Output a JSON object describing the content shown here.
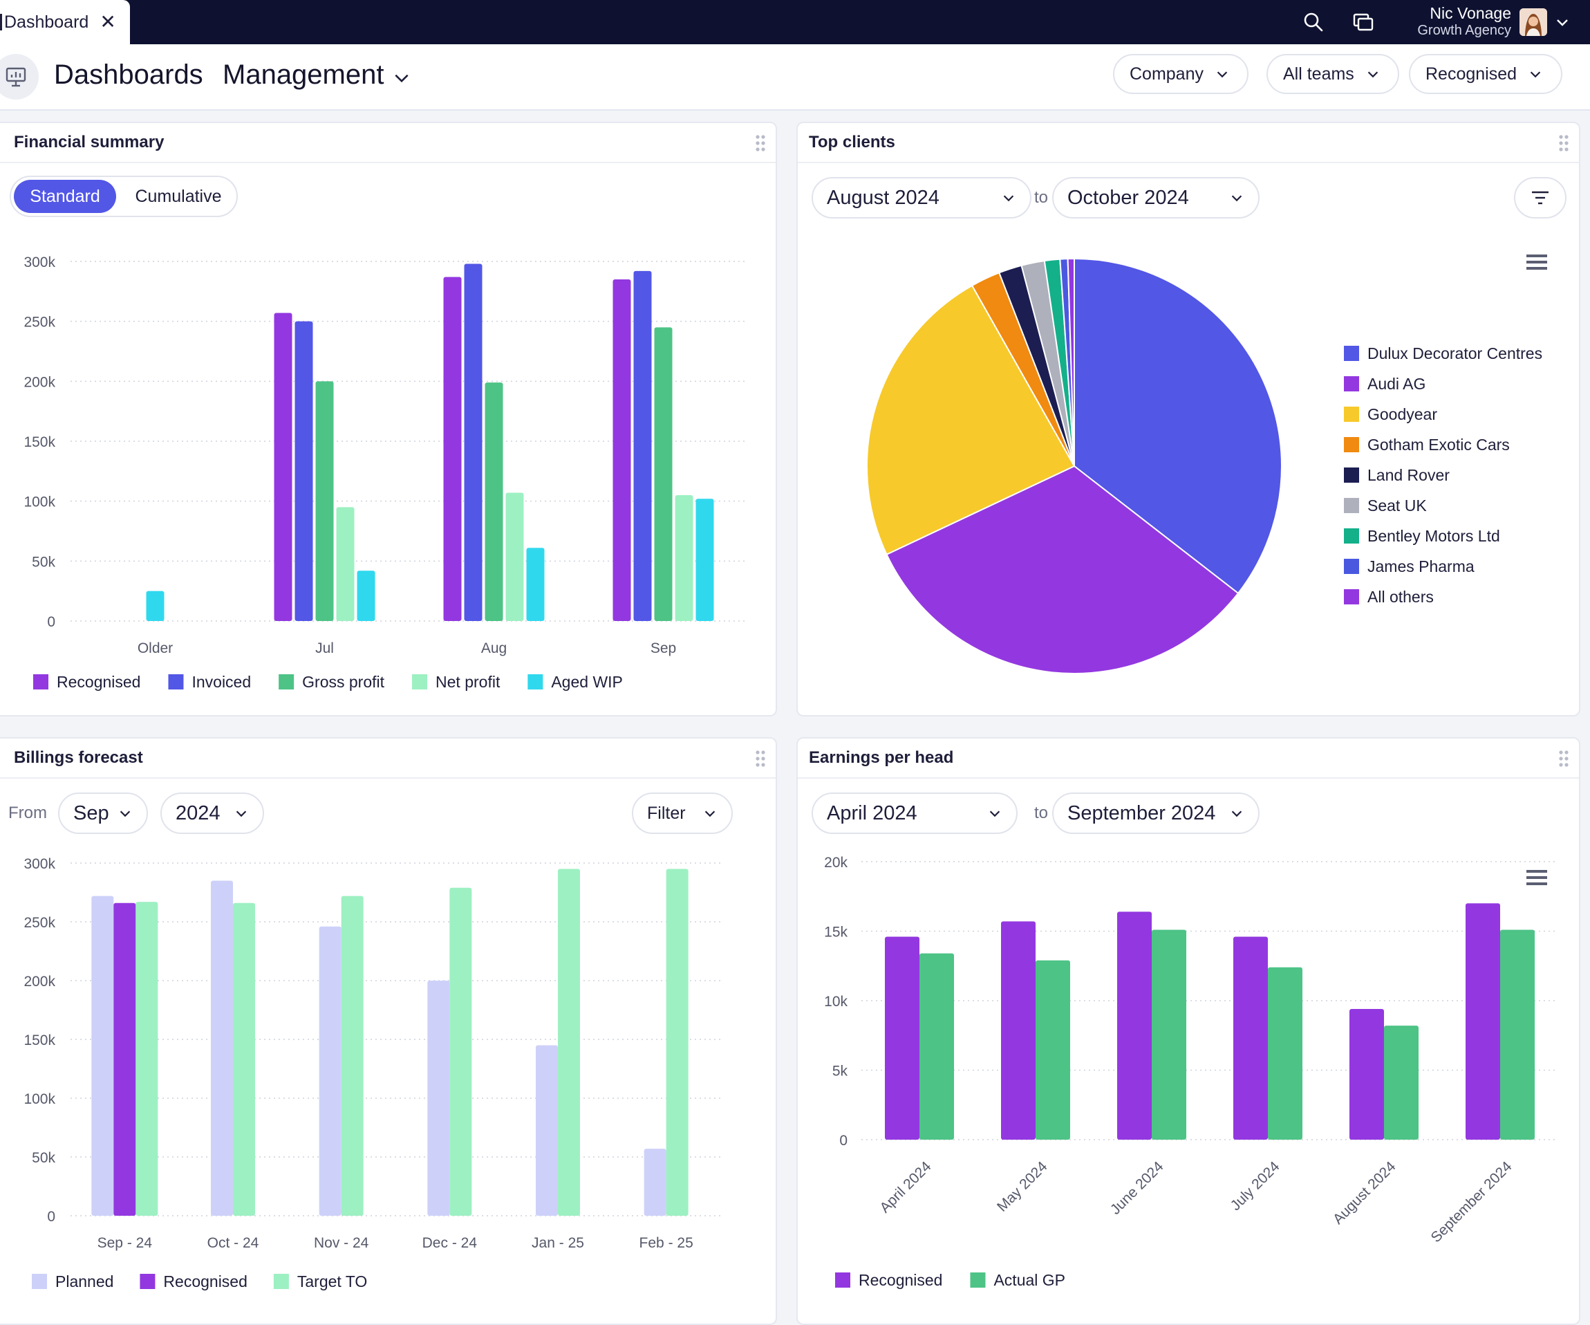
{
  "topbar": {
    "tab_label": "Dashboard",
    "tab_close": "✕",
    "user_name": "Nic Vonage",
    "user_org": "Growth Agency",
    "icons": [
      "search-icon",
      "windows-icon",
      "chevron-down-icon"
    ]
  },
  "header": {
    "title": "Dashboards",
    "subtitle": "Management",
    "filters": [
      "Company",
      "All teams",
      "Recognised"
    ]
  },
  "colors": {
    "recognised": "#9338e0",
    "invoiced": "#5257e6",
    "gross_profit": "#4dc386",
    "net_profit": "#9df0c2",
    "aged_wip": "#30d8ee",
    "planned": "#cdd1f9",
    "target_to": "#9df0c2",
    "actual_gp": "#4dc386"
  },
  "financial_summary": {
    "title": "Financial summary",
    "toggle": {
      "on": "Standard",
      "off": "Cumulative"
    },
    "chart_data": {
      "type": "bar",
      "categories": [
        "Older",
        "Jul",
        "Aug",
        "Sep"
      ],
      "y_ticks": [
        "300k",
        "250k",
        "200k",
        "150k",
        "100k",
        "50k",
        "0"
      ],
      "ylim": [
        0,
        300000
      ],
      "series": [
        {
          "name": "Recognised",
          "values": [
            0,
            257000,
            287000,
            285000
          ]
        },
        {
          "name": "Invoiced",
          "values": [
            0,
            250000,
            298000,
            292000
          ]
        },
        {
          "name": "Gross profit",
          "values": [
            0,
            200000,
            199000,
            245000
          ]
        },
        {
          "name": "Net profit",
          "values": [
            0,
            95000,
            107000,
            105000
          ]
        },
        {
          "name": "Aged WIP",
          "values": [
            25000,
            42000,
            61000,
            102000
          ]
        }
      ]
    }
  },
  "top_clients": {
    "title": "Top clients",
    "from": "August 2024",
    "to_label": "to",
    "to": "October 2024",
    "chart_data": {
      "type": "pie",
      "slices": [
        {
          "name": "Dulux Decorator Centres",
          "value": 35.5,
          "color": "#5257e6"
        },
        {
          "name": "Audi AG",
          "value": 32.5,
          "color": "#9338e0"
        },
        {
          "name": "Goodyear",
          "value": 23.8,
          "color": "#f7c92a"
        },
        {
          "name": "Gotham Exotic Cars",
          "value": 2.3,
          "color": "#f08a10"
        },
        {
          "name": "Land Rover",
          "value": 1.8,
          "color": "#1c1e52"
        },
        {
          "name": "Seat UK",
          "value": 1.8,
          "color": "#aeb0bc"
        },
        {
          "name": "Bentley Motors Ltd",
          "value": 1.2,
          "color": "#14b08a"
        },
        {
          "name": "James Pharma",
          "value": 0.6,
          "color": "#4a58e0"
        },
        {
          "name": "All others",
          "value": 0.5,
          "color": "#9338e0"
        }
      ]
    }
  },
  "billings_forecast": {
    "title": "Billings forecast",
    "from_label": "From",
    "month": "Sep",
    "year": "2024",
    "filter_label": "Filter",
    "chart_data": {
      "type": "bar",
      "categories": [
        "Sep - 24",
        "Oct - 24",
        "Nov - 24",
        "Dec - 24",
        "Jan - 25",
        "Feb - 25"
      ],
      "y_ticks": [
        "300k",
        "250k",
        "200k",
        "150k",
        "100k",
        "50k",
        "0"
      ],
      "ylim": [
        0,
        300000
      ],
      "series": [
        {
          "name": "Planned",
          "values": [
            272000,
            285000,
            246000,
            200000,
            145000,
            57000
          ]
        },
        {
          "name": "Recognised",
          "values": [
            266000,
            null,
            null,
            null,
            null,
            null
          ]
        },
        {
          "name": "Target TO",
          "values": [
            267000,
            266000,
            272000,
            279000,
            295000,
            295000
          ]
        }
      ]
    }
  },
  "earnings_per_head": {
    "title": "Earnings per head",
    "from": "April 2024",
    "to_label": "to",
    "to": "September 2024",
    "chart_data": {
      "type": "bar",
      "categories": [
        "April 2024",
        "May 2024",
        "June 2024",
        "July 2024",
        "August 2024",
        "September 2024"
      ],
      "y_ticks": [
        "20k",
        "15k",
        "10k",
        "5k",
        "0"
      ],
      "ylim": [
        0,
        20000
      ],
      "series": [
        {
          "name": "Recognised",
          "values": [
            14600,
            15700,
            16400,
            14600,
            9400,
            17000
          ]
        },
        {
          "name": "Actual GP",
          "values": [
            13400,
            12900,
            15100,
            12400,
            8200,
            15100
          ]
        }
      ]
    }
  }
}
